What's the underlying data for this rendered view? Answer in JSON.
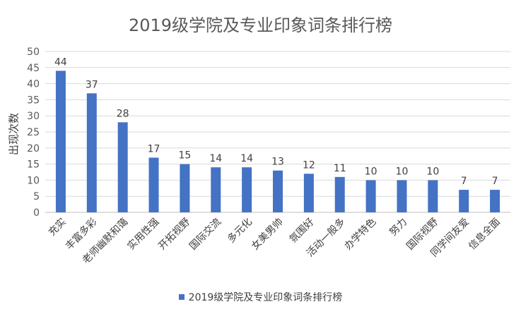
{
  "chart_data": {
    "type": "bar",
    "title": "2019级学院及专业印象词条排行榜",
    "xlabel": "",
    "ylabel": "出现次数",
    "ylim": [
      0,
      50
    ],
    "yticks": [
      0,
      5,
      10,
      15,
      20,
      25,
      30,
      35,
      40,
      45,
      50
    ],
    "grid": true,
    "legend_position": "bottom",
    "categories": [
      "充实",
      "丰富多彩",
      "老师幽默和蔼",
      "实用性强",
      "开拓视野",
      "国际交流",
      "多元化",
      "女美男帅",
      "氛围好",
      "活动一般多",
      "办学特色",
      "努力",
      "国际视野",
      "同学间友爱",
      "信息全面"
    ],
    "series": [
      {
        "name": "2019级学院及专业印象词条排行榜",
        "color": "#4472C4",
        "values": [
          44,
          37,
          28,
          17,
          15,
          14,
          14,
          13,
          12,
          11,
          10,
          10,
          10,
          7,
          7
        ]
      }
    ]
  }
}
